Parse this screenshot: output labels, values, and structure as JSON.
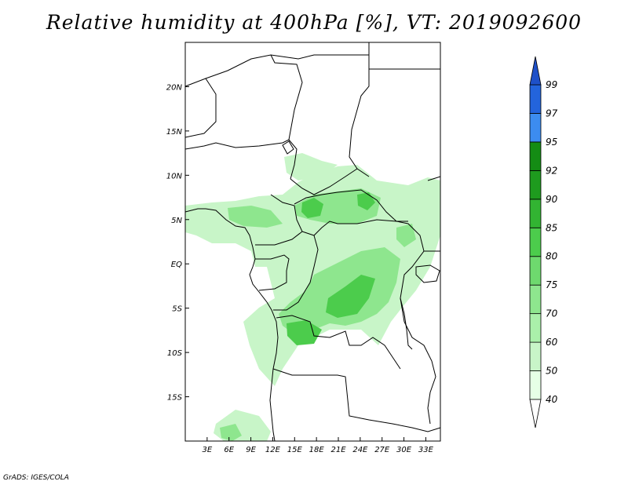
{
  "title": "Relative humidity at 400hPa [%], VT: 2019092600",
  "credit": "GrADS: IGES/COLA",
  "map": {
    "lon_range": [
      0,
      35
    ],
    "lat_range": [
      -20,
      25
    ],
    "lat_ticks": [
      {
        "value": 20,
        "label": "20N"
      },
      {
        "value": 15,
        "label": "15N"
      },
      {
        "value": 10,
        "label": "10N"
      },
      {
        "value": 5,
        "label": "5N"
      },
      {
        "value": 0,
        "label": "EQ"
      },
      {
        "value": -5,
        "label": "5S"
      },
      {
        "value": -10,
        "label": "10S"
      },
      {
        "value": -15,
        "label": "15S"
      }
    ],
    "lon_ticks": [
      {
        "value": 3,
        "label": "3E"
      },
      {
        "value": 6,
        "label": "6E"
      },
      {
        "value": 9,
        "label": "9E"
      },
      {
        "value": 12,
        "label": "12E"
      },
      {
        "value": 15,
        "label": "15E"
      },
      {
        "value": 18,
        "label": "18E"
      },
      {
        "value": 21,
        "label": "21E"
      },
      {
        "value": 24,
        "label": "24E"
      },
      {
        "value": 27,
        "label": "27E"
      },
      {
        "value": 30,
        "label": "30E"
      },
      {
        "value": 33,
        "label": "33E"
      }
    ]
  },
  "colorbar": {
    "levels": [
      {
        "label": "40",
        "color": "#ffffff"
      },
      {
        "label": "50",
        "color": "#e6ffe6"
      },
      {
        "label": "60",
        "color": "#c8f5c8"
      },
      {
        "label": "70",
        "color": "#aaf0aa"
      },
      {
        "label": "75",
        "color": "#8ee68e"
      },
      {
        "label": "80",
        "color": "#6ed96e"
      },
      {
        "label": "85",
        "color": "#4ccc4c"
      },
      {
        "label": "90",
        "color": "#32b432"
      },
      {
        "label": "92",
        "color": "#1e9b1e"
      },
      {
        "label": "95",
        "color": "#148c14"
      },
      {
        "label": "97",
        "color": "#3c8cf0"
      },
      {
        "label": "99",
        "color": "#2364dc"
      }
    ],
    "top_arrow_color": "#1e50c8",
    "bottom_arrow_color": "#ffffff"
  }
}
